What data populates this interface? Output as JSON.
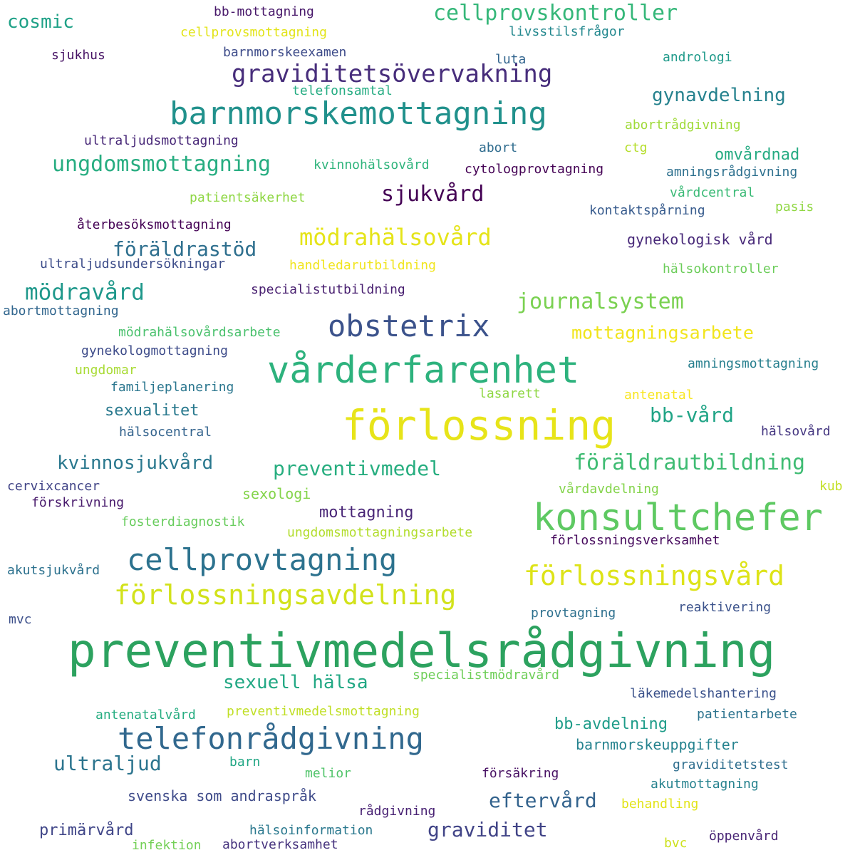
{
  "words": [
    {
      "text": "preventivmedelsrådgivning",
      "color": "#2ca25f"
    },
    {
      "text": "förlossning",
      "color": "#e7e419"
    },
    {
      "text": "vårderfarenhet",
      "color": "#2db27d"
    },
    {
      "text": "barnmorskemottagning",
      "color": "#21918c"
    },
    {
      "text": "konsultchefer",
      "color": "#5ec962"
    },
    {
      "text": "obstetrix",
      "color": "#3b528b"
    },
    {
      "text": "cellprovtagning",
      "color": "#2c728e"
    },
    {
      "text": "telefonrådgivning",
      "color": "#31688e"
    },
    {
      "text": "förlossningsavdelning",
      "color": "#d2e21b"
    },
    {
      "text": "förlossningsvård",
      "color": "#dde318"
    },
    {
      "text": "graviditetsövervakning",
      "color": "#472d7b"
    },
    {
      "text": "cellprovskontroller",
      "color": "#35b779"
    },
    {
      "text": "ungdomsmottagning",
      "color": "#27ad81"
    },
    {
      "text": "mödrahälsovård",
      "color": "#e5e419"
    },
    {
      "text": "mödravård",
      "color": "#1f988b"
    },
    {
      "text": "sjukvård",
      "color": "#440154"
    },
    {
      "text": "journalsystem",
      "color": "#7ad151"
    },
    {
      "text": "föräldrautbildning",
      "color": "#3fbc73"
    },
    {
      "text": "preventivmedel",
      "color": "#28ae80"
    },
    {
      "text": "mottagningsarbete",
      "color": "#f1e51d"
    },
    {
      "text": "föräldrastöd",
      "color": "#2e6f8e"
    },
    {
      "text": "gynavdelning",
      "color": "#26828e"
    },
    {
      "text": "kvinnosjukvård",
      "color": "#2a788e"
    },
    {
      "text": "bb-vård",
      "color": "#20a486"
    },
    {
      "text": "sexuell hälsa",
      "color": "#22a884"
    },
    {
      "text": "ultraljud",
      "color": "#2b748e"
    },
    {
      "text": "eftervård",
      "color": "#33638d"
    },
    {
      "text": "graviditet",
      "color": "#414487"
    },
    {
      "text": "cosmic",
      "color": "#1fa187"
    },
    {
      "text": "sexualitet",
      "color": "#29798e"
    },
    {
      "text": "mottagning",
      "color": "#482576"
    },
    {
      "text": "bb-avdelning",
      "color": "#1e9c89"
    },
    {
      "text": "omvårdnad",
      "color": "#25ab82"
    },
    {
      "text": "primärvård",
      "color": "#404688"
    },
    {
      "text": "svenska som andraspråk",
      "color": "#3e4a89"
    },
    {
      "text": "barnmorskeuppgifter",
      "color": "#26838f"
    },
    {
      "text": "sexologi",
      "color": "#84d44b"
    },
    {
      "text": "specialistutbildning",
      "color": "#481f70"
    },
    {
      "text": "gynekologisk vård",
      "color": "#482979"
    },
    {
      "text": "hälsokontroller",
      "color": "#6ccd5a"
    },
    {
      "text": "reaktivering",
      "color": "#3b528b"
    },
    {
      "text": "förlossningsverksamhet",
      "color": "#460a5d"
    },
    {
      "text": "cellprovsmottagning",
      "color": "#e2e418"
    },
    {
      "text": "bb-mottagning",
      "color": "#48186a"
    },
    {
      "text": "livsstilsfrågor",
      "color": "#23888e"
    },
    {
      "text": "sjukhus",
      "color": "#471365"
    },
    {
      "text": "barnmorskeexamen",
      "color": "#3e4c8a"
    },
    {
      "text": "luta",
      "color": "#32658e"
    },
    {
      "text": "andrologi",
      "color": "#1f9a8a"
    },
    {
      "text": "telefonsamtal",
      "color": "#25ac82"
    },
    {
      "text": "abortrådgivning",
      "color": "#a0da39"
    },
    {
      "text": "ultraljudsmottagning",
      "color": "#482878"
    },
    {
      "text": "abort",
      "color": "#2f6c8e"
    },
    {
      "text": "ctg",
      "color": "#b5de2b"
    },
    {
      "text": "kvinnohälsovård",
      "color": "#2fb47c"
    },
    {
      "text": "cytologprovtagning",
      "color": "#440154"
    },
    {
      "text": "amningsrådgivning",
      "color": "#2d708e"
    },
    {
      "text": "vårdcentral",
      "color": "#3aba76"
    },
    {
      "text": "patientsäkerhet",
      "color": "#8fd744"
    },
    {
      "text": "kontaktspårning",
      "color": "#375b8d"
    },
    {
      "text": "pasis",
      "color": "#90d743"
    },
    {
      "text": "återbesöksmottagning",
      "color": "#440154"
    },
    {
      "text": "ultraljudsundersökningar",
      "color": "#3d4d8a"
    },
    {
      "text": "handledarutbildning",
      "color": "#f1e51d"
    },
    {
      "text": "abortmottagning",
      "color": "#31668e"
    },
    {
      "text": "mödrahälsovårdsarbete",
      "color": "#4ac16d"
    },
    {
      "text": "gynekologmottagning",
      "color": "#3e4c8a"
    },
    {
      "text": "ungdomar",
      "color": "#a8db34"
    },
    {
      "text": "amningsmottagning",
      "color": "#277f8e"
    },
    {
      "text": "familjeplanering",
      "color": "#2a768e"
    },
    {
      "text": "lasarett",
      "color": "#8fd744"
    },
    {
      "text": "antenatal",
      "color": "#f8e621"
    },
    {
      "text": "hälsocentral",
      "color": "#33638d"
    },
    {
      "text": "hälsovård",
      "color": "#453781"
    },
    {
      "text": "cervixcancer",
      "color": "#414487"
    },
    {
      "text": "förskrivning",
      "color": "#481a6c"
    },
    {
      "text": "vårdavdelning",
      "color": "#84d44b"
    },
    {
      "text": "kub",
      "color": "#c2df23"
    },
    {
      "text": "fosterdiagnostik",
      "color": "#67cc5c"
    },
    {
      "text": "ungdomsmottagningsarbete",
      "color": "#b2dd2d"
    },
    {
      "text": "akutsjukvård",
      "color": "#2c718e"
    },
    {
      "text": "mvc",
      "color": "#3c4f8a"
    },
    {
      "text": "provtagning",
      "color": "#2d708e"
    },
    {
      "text": "specialistmödravård",
      "color": "#6ece58"
    },
    {
      "text": "läkemedelshantering",
      "color": "#3b528b"
    },
    {
      "text": "antenatalvård",
      "color": "#26ad81"
    },
    {
      "text": "preventivmedelsmottagning",
      "color": "#c0df25"
    },
    {
      "text": "patientarbete",
      "color": "#2c738e"
    },
    {
      "text": "barn",
      "color": "#22a785"
    },
    {
      "text": "melior",
      "color": "#50c46a"
    },
    {
      "text": "försäkring",
      "color": "#471063"
    },
    {
      "text": "graviditetstest",
      "color": "#2e6e8e"
    },
    {
      "text": "akutmottagning",
      "color": "#26828e"
    },
    {
      "text": "rådgivning",
      "color": "#482173"
    },
    {
      "text": "behandling",
      "color": "#e2e418"
    },
    {
      "text": "hälsoinformation",
      "color": "#2a788e"
    },
    {
      "text": "infektion",
      "color": "#73d056"
    },
    {
      "text": "abortverksamhet",
      "color": "#46337e"
    },
    {
      "text": "bvc",
      "color": "#cde11d"
    },
    {
      "text": "öppenvård",
      "color": "#482475"
    }
  ]
}
